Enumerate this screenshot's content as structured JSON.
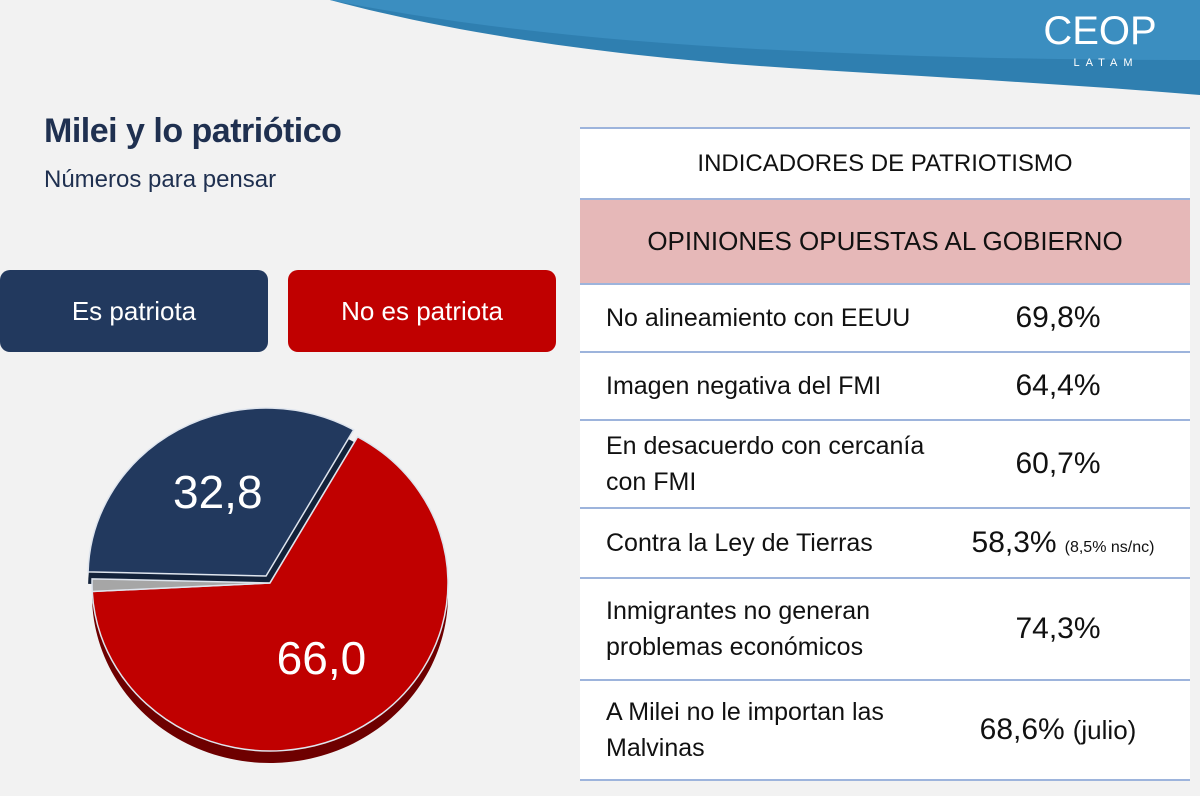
{
  "logo": {
    "name": "CEOP",
    "sub": "LATAM"
  },
  "chart_data": {
    "type": "pie",
    "title": "Milei y lo patriótico",
    "subtitle": "Números para pensar",
    "categories": [
      "Es patriota",
      "No es patriota",
      null
    ],
    "values": [
      32.8,
      66.0,
      1.2
    ],
    "value_labels": [
      "32,8",
      "66,0",
      null
    ],
    "colors": [
      "#22395e",
      "#c00000",
      "#a6a6a6"
    ]
  },
  "table": {
    "title": "INDICADORES DE PATRIOTISMO",
    "section": "OPINIONES OPUESTAS AL GOBIERNO",
    "rows": [
      {
        "label": "No alineamiento con EEUU",
        "value": "69,8%"
      },
      {
        "label": "Imagen negativa del FMI",
        "value": "64,4%"
      },
      {
        "label": "En desacuerdo con cercanía con FMI",
        "value": "60,7%"
      },
      {
        "label": "Contra la Ley de Tierras",
        "value": "58,3%",
        "note": "(8,5% ns/nc)"
      },
      {
        "label": "Inmigrantes no generan problemas económicos",
        "value": "74,3%"
      },
      {
        "label": "A Milei no le importan las Malvinas",
        "value": "68,6%",
        "note": "(julio)"
      }
    ]
  }
}
